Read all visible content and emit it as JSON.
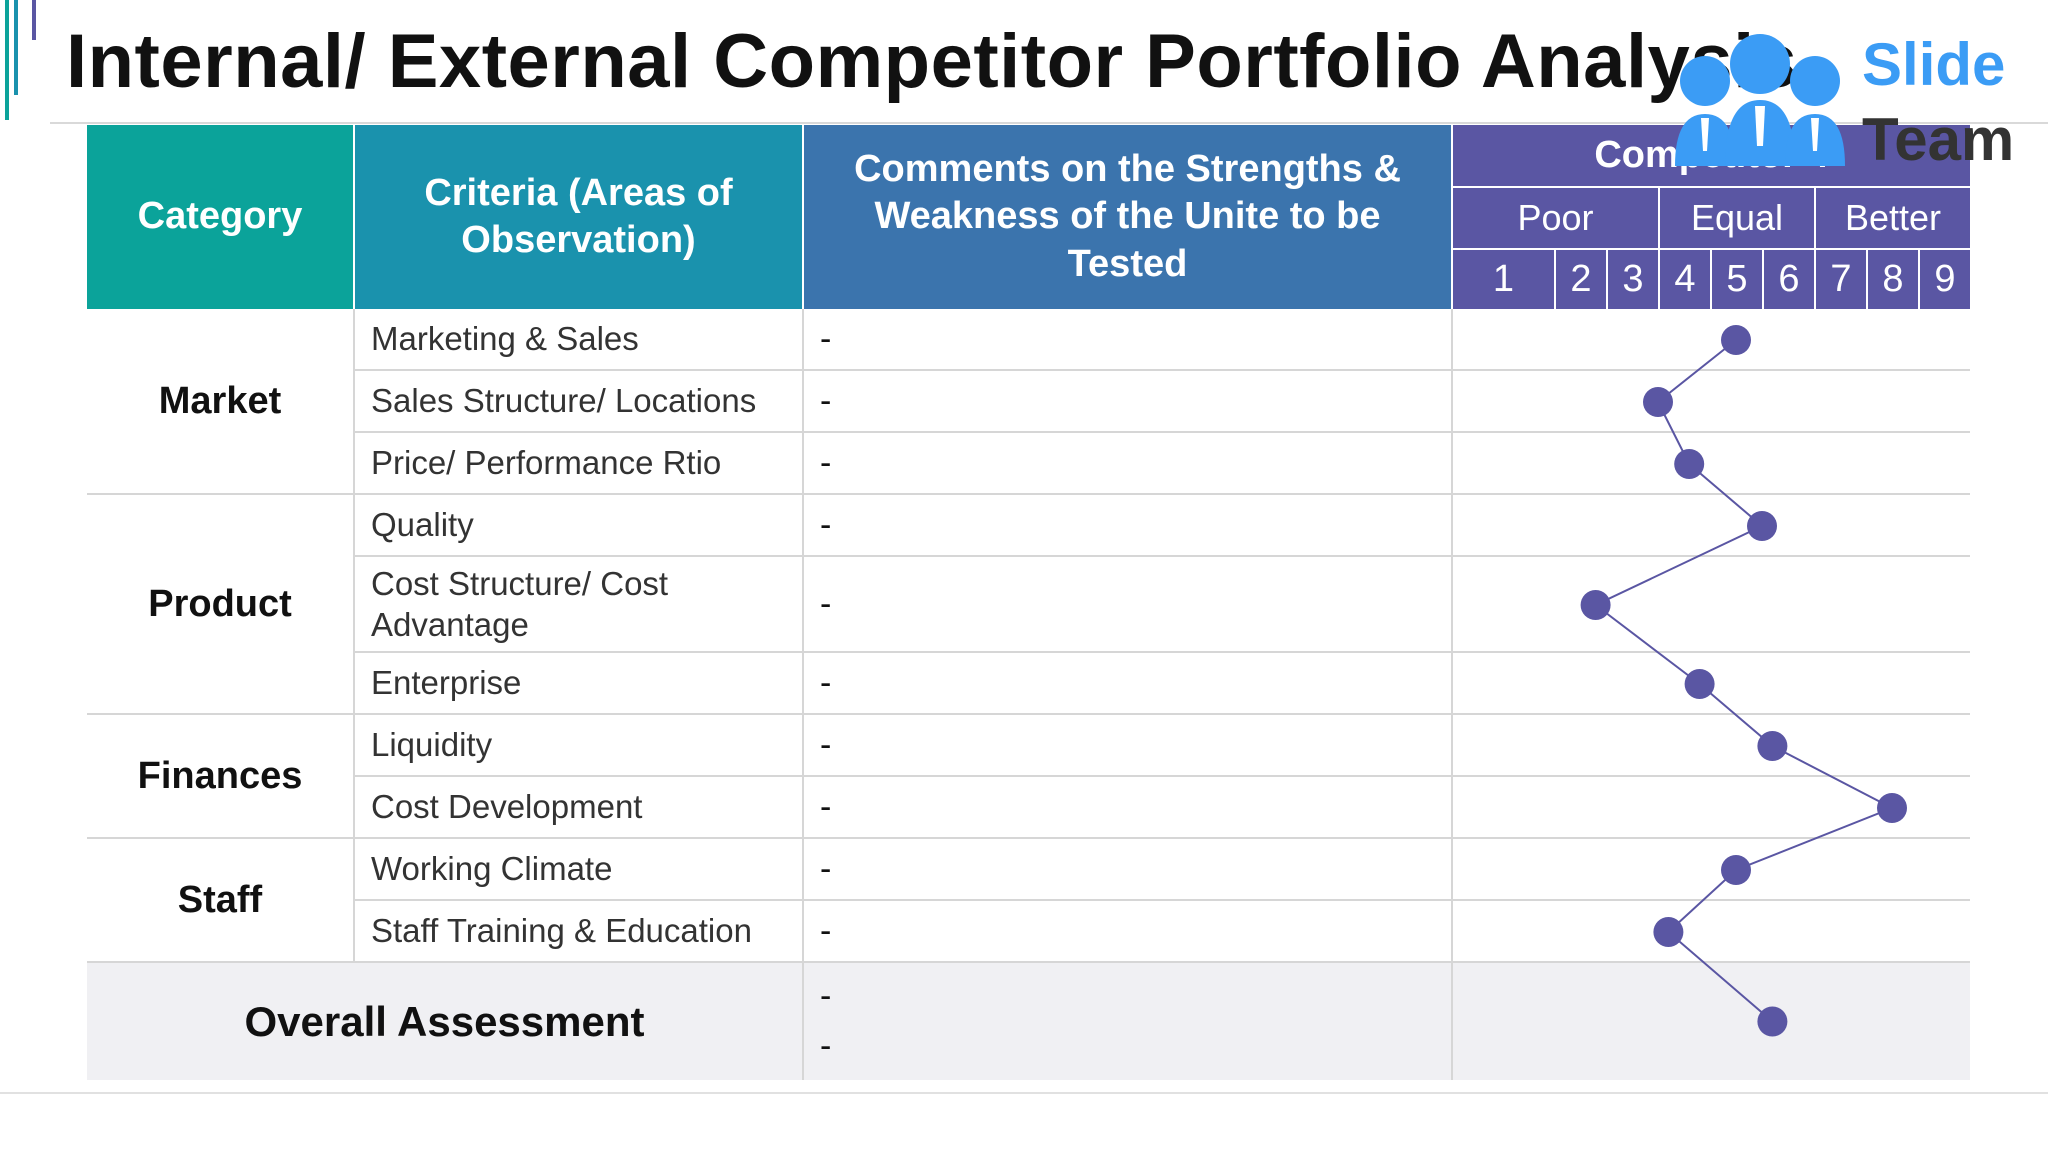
{
  "title": "Internal/ External Competitor Portfolio Analysis",
  "logo": {
    "line1": "Slide",
    "line2": "Team",
    "icon": "people-group-icon"
  },
  "colors": {
    "category_header": "#0ba39a",
    "criteria_header": "#1a92ad",
    "comments_header": "#3b74ad",
    "competitor_header": "#5a56a3",
    "marker": "#5a56a3",
    "connector": "#5a56a3",
    "logo_slide": "#3b9cf5",
    "overall_row": "#f0f0f3"
  },
  "table": {
    "headers": {
      "category": "Category",
      "criteria": "Criteria (Areas of Observation)",
      "comments": "Comments on the Strengths & Weakness of the Unite to be Tested",
      "competitor": "Competitor 4"
    },
    "rating_groups": [
      "Poor",
      "Equal",
      "Better"
    ],
    "scale": [
      "1",
      "2",
      "3",
      "4",
      "5",
      "6",
      "7",
      "8",
      "9"
    ],
    "categories": [
      "Market",
      "Product",
      "Finances",
      "Staff"
    ],
    "rows": [
      {
        "criterion": "Marketing & Sales",
        "comment": "-"
      },
      {
        "criterion": "Sales Structure/ Locations",
        "comment": "-"
      },
      {
        "criterion": "Price/ Performance Rtio",
        "comment": "-"
      },
      {
        "criterion": "Quality",
        "comment": "-"
      },
      {
        "criterion": "Cost Structure/ Cost Advantage",
        "comment": "-"
      },
      {
        "criterion": "Enterprise",
        "comment": "-"
      },
      {
        "criterion": "Liquidity",
        "comment": "-"
      },
      {
        "criterion": "Cost Development",
        "comment": "-"
      },
      {
        "criterion": "Working Climate",
        "comment": "-"
      },
      {
        "criterion": "Staff Training & Education",
        "comment": "-"
      }
    ],
    "overall": {
      "label": "Overall Assessment",
      "comments": [
        "-",
        "-"
      ]
    }
  },
  "chart_data": {
    "type": "line",
    "series": [
      {
        "name": "Competitor 4",
        "values": [
          5,
          3.5,
          4.1,
          5.5,
          2.3,
          4.3,
          5.7,
          8,
          5,
          3.7,
          5.7
        ]
      }
    ],
    "categories": [
      "Marketing & Sales",
      "Sales Structure/ Locations",
      "Price/ Performance Rtio",
      "Quality",
      "Cost Structure/ Cost Advantage",
      "Enterprise",
      "Liquidity",
      "Cost Development",
      "Working Climate",
      "Staff Training & Education",
      "Overall Assessment"
    ],
    "scale_range": [
      1,
      9
    ]
  }
}
